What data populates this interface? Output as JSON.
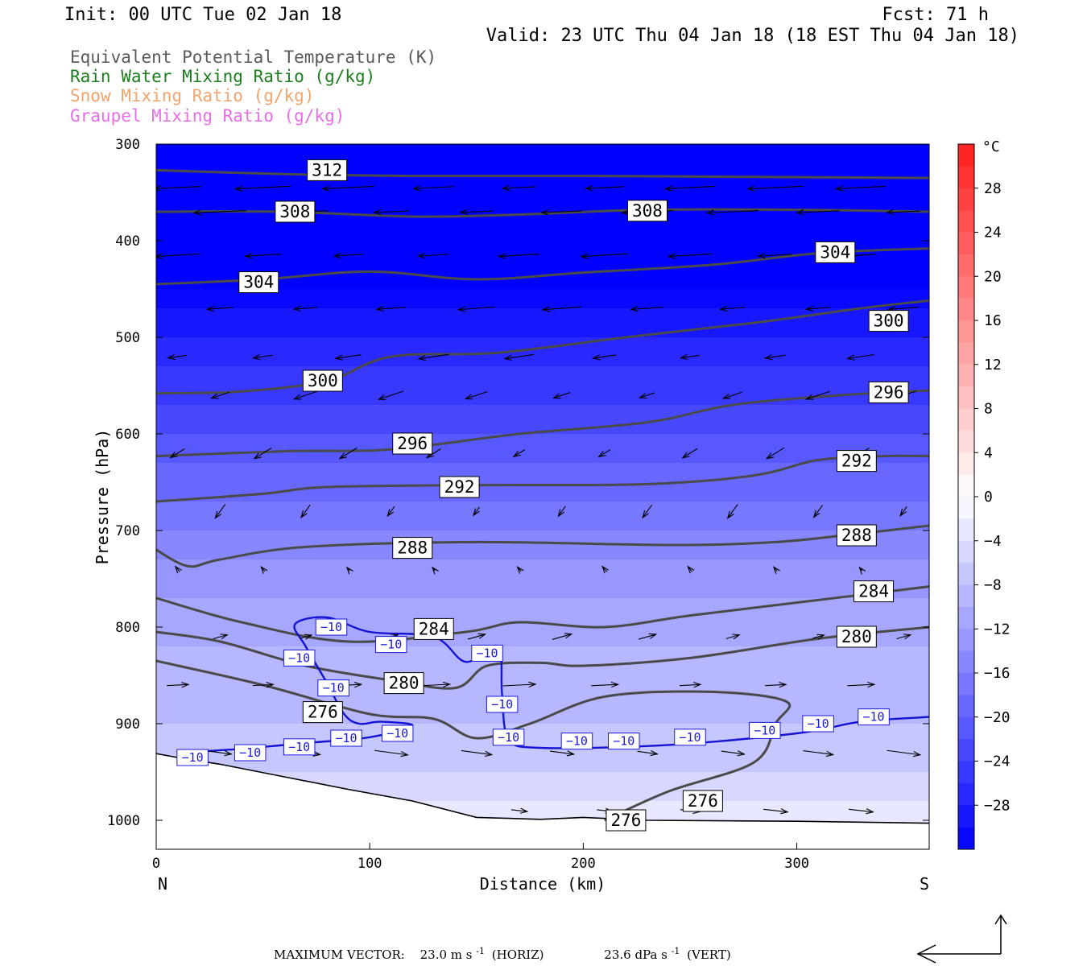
{
  "header": {
    "init": "Init: 00 UTC Tue 02 Jan 18",
    "fcst": "Fcst:   71 h",
    "valid": "Valid: 23 UTC Thu 04 Jan 18 (18 EST Thu 04 Jan 18)"
  },
  "legend": [
    {
      "text": "Equivalent Potential Temperature (K)",
      "color": "#5a5a5a"
    },
    {
      "text": "Rain Water Mixing Ratio (g/kg)",
      "color": "#1e7d1e"
    },
    {
      "text": "Snow Mixing Ratio (g/kg)",
      "color": "#f0a46e"
    },
    {
      "text": "Graupel Mixing Ratio (g/kg)",
      "color": "#e86ee8"
    }
  ],
  "chart_data": {
    "type": "cross-section",
    "xlabel": "Distance (km)",
    "ylabel": "Pressure (hPa)",
    "xlim": [
      0,
      362
    ],
    "ylim": [
      1030,
      300
    ],
    "x_ticks": [
      "0",
      "100",
      "200",
      "300"
    ],
    "y_ticks": [
      "300",
      "400",
      "500",
      "600",
      "700",
      "800",
      "900",
      "1000"
    ],
    "x_end_labels": {
      "left": "N",
      "right": "S"
    },
    "colorbar": {
      "unit": "°C",
      "labels": [
        "28",
        "24",
        "20",
        "16",
        "12",
        "8",
        "4",
        "0",
        "−4",
        "−8",
        "−12",
        "−16",
        "−20",
        "−24",
        "−28"
      ],
      "range": [
        -32,
        32
      ],
      "step": 2
    },
    "theta_e_contours": [
      {
        "value": 312,
        "label": "312",
        "points": [
          [
            0,
            327
          ],
          [
            60,
            331
          ],
          [
            120,
            333
          ],
          [
            200,
            333
          ],
          [
            280,
            334
          ],
          [
            362,
            335
          ]
        ]
      },
      {
        "value": 308,
        "label": "308",
        "points": [
          [
            0,
            370
          ],
          [
            60,
            370
          ],
          [
            120,
            375
          ],
          [
            170,
            373
          ],
          [
            230,
            368
          ],
          [
            300,
            368
          ],
          [
            362,
            370
          ]
        ]
      },
      {
        "value": 304,
        "label": "304",
        "points": [
          [
            0,
            445
          ],
          [
            50,
            440
          ],
          [
            100,
            432
          ],
          [
            150,
            440
          ],
          [
            200,
            433
          ],
          [
            260,
            425
          ],
          [
            310,
            413
          ],
          [
            362,
            408
          ]
        ]
      },
      {
        "value": 300,
        "label": "300",
        "points": [
          [
            0,
            558
          ],
          [
            40,
            556
          ],
          [
            80,
            545
          ],
          [
            110,
            520
          ],
          [
            160,
            516
          ],
          [
            220,
            500
          ],
          [
            280,
            485
          ],
          [
            330,
            470
          ],
          [
            362,
            462
          ]
        ]
      },
      {
        "value": 296,
        "label": "296",
        "points": [
          [
            0,
            623
          ],
          [
            60,
            618
          ],
          [
            110,
            616
          ],
          [
            170,
            600
          ],
          [
            230,
            588
          ],
          [
            270,
            570
          ],
          [
            320,
            560
          ],
          [
            362,
            555
          ]
        ]
      },
      {
        "value": 292,
        "label": "292",
        "points": [
          [
            0,
            670
          ],
          [
            50,
            662
          ],
          [
            80,
            655
          ],
          [
            150,
            653
          ],
          [
            230,
            652
          ],
          [
            280,
            643
          ],
          [
            310,
            627
          ],
          [
            340,
            623
          ],
          [
            362,
            623
          ]
        ]
      },
      {
        "value": 288,
        "label": "288",
        "points": [
          [
            0,
            720
          ],
          [
            15,
            737
          ],
          [
            30,
            730
          ],
          [
            70,
            717
          ],
          [
            150,
            712
          ],
          [
            240,
            715
          ],
          [
            290,
            712
          ],
          [
            330,
            703
          ],
          [
            362,
            695
          ]
        ]
      },
      {
        "value": 284,
        "label": "284",
        "points": [
          [
            0,
            770
          ],
          [
            40,
            795
          ],
          [
            90,
            815
          ],
          [
            145,
            805
          ],
          [
            170,
            795
          ],
          [
            210,
            800
          ],
          [
            250,
            788
          ],
          [
            310,
            772
          ],
          [
            362,
            758
          ]
        ]
      },
      {
        "value": 280,
        "label": "280",
        "points": [
          [
            0,
            805
          ],
          [
            30,
            815
          ],
          [
            70,
            840
          ],
          [
            110,
            855
          ],
          [
            140,
            863
          ],
          [
            155,
            840
          ],
          [
            180,
            837
          ],
          [
            200,
            840
          ],
          [
            250,
            832
          ],
          [
            310,
            812
          ],
          [
            362,
            800
          ]
        ]
      },
      {
        "value": 276,
        "label": "276",
        "points": [
          [
            0,
            835
          ],
          [
            50,
            860
          ],
          [
            100,
            890
          ],
          [
            130,
            895
          ],
          [
            150,
            915
          ],
          [
            175,
            900
          ],
          [
            210,
            872
          ],
          [
            260,
            867
          ],
          [
            295,
            877
          ],
          [
            290,
            900
          ],
          [
            280,
            940
          ],
          [
            240,
            970
          ],
          [
            210,
            1000
          ]
        ]
      }
    ],
    "temperature_contours": [
      {
        "value": -10,
        "label": "−10",
        "points": [
          [
            10,
            930
          ],
          [
            40,
            926
          ],
          [
            70,
            920
          ],
          [
            100,
            914
          ],
          [
            120,
            902
          ],
          [
            105,
            898
          ],
          [
            95,
            900
          ],
          [
            88,
            890
          ],
          [
            80,
            858
          ],
          [
            70,
            820
          ],
          [
            65,
            797
          ],
          [
            80,
            790
          ],
          [
            100,
            805
          ],
          [
            130,
            810
          ],
          [
            145,
            836
          ],
          [
            160,
            820
          ],
          [
            162,
            870
          ],
          [
            165,
            915
          ],
          [
            180,
            925
          ],
          [
            240,
            922
          ],
          [
            300,
            910
          ],
          [
            330,
            898
          ],
          [
            362,
            893
          ]
        ]
      }
    ],
    "temperature_labels": [
      {
        "x": 17,
        "p": 935,
        "text": "−10"
      },
      {
        "x": 44,
        "p": 930,
        "text": "−10"
      },
      {
        "x": 67,
        "p": 924,
        "text": "−10"
      },
      {
        "x": 89,
        "p": 915,
        "text": "−10"
      },
      {
        "x": 113,
        "p": 910,
        "text": "−10"
      },
      {
        "x": 67,
        "p": 832,
        "text": "−10"
      },
      {
        "x": 82,
        "p": 800,
        "text": "−10"
      },
      {
        "x": 83,
        "p": 863,
        "text": "−10"
      },
      {
        "x": 110,
        "p": 818,
        "text": "−10"
      },
      {
        "x": 155,
        "p": 827,
        "text": "−10"
      },
      {
        "x": 162,
        "p": 880,
        "text": "−10"
      },
      {
        "x": 165,
        "p": 914,
        "text": "−10"
      },
      {
        "x": 197,
        "p": 918,
        "text": "−10"
      },
      {
        "x": 219,
        "p": 918,
        "text": "−10"
      },
      {
        "x": 250,
        "p": 914,
        "text": "−10"
      },
      {
        "x": 285,
        "p": 907,
        "text": "−10"
      },
      {
        "x": 310,
        "p": 900,
        "text": "−10"
      },
      {
        "x": 336,
        "p": 893,
        "text": "−10"
      }
    ],
    "surface_pressure": [
      [
        0,
        931
      ],
      [
        10,
        935
      ],
      [
        30,
        942
      ],
      [
        60,
        955
      ],
      [
        90,
        968
      ],
      [
        120,
        980
      ],
      [
        150,
        997
      ],
      [
        180,
        999
      ],
      [
        200,
        997
      ],
      [
        230,
        1000
      ],
      [
        300,
        1001
      ],
      [
        362,
        1003
      ]
    ],
    "temperature_field": [
      {
        "p": 300,
        "t": -35
      },
      {
        "p": 450,
        "t": -32
      },
      {
        "p": 500,
        "t": -28
      },
      {
        "p": 550,
        "t": -25
      },
      {
        "p": 600,
        "t": -22
      },
      {
        "p": 650,
        "t": -19
      },
      {
        "p": 700,
        "t": -16
      },
      {
        "p": 750,
        "t": -13
      },
      {
        "p": 800,
        "t": -11
      },
      {
        "p": 850,
        "t": -9
      },
      {
        "p": 900,
        "t": -8
      },
      {
        "p": 950,
        "t": -6
      },
      {
        "p": 1000,
        "t": -3
      },
      {
        "p": 1030,
        "t": -2
      }
    ],
    "footer": {
      "max_vector_label": "MAXIMUM VECTOR:",
      "horiz_value": "23.0 m s",
      "horiz_exp": "-1",
      "horiz_tag": "(HORIZ)",
      "vert_value": "23.6 dPa s",
      "vert_exp": "-1",
      "vert_tag": "(VERT)"
    }
  }
}
